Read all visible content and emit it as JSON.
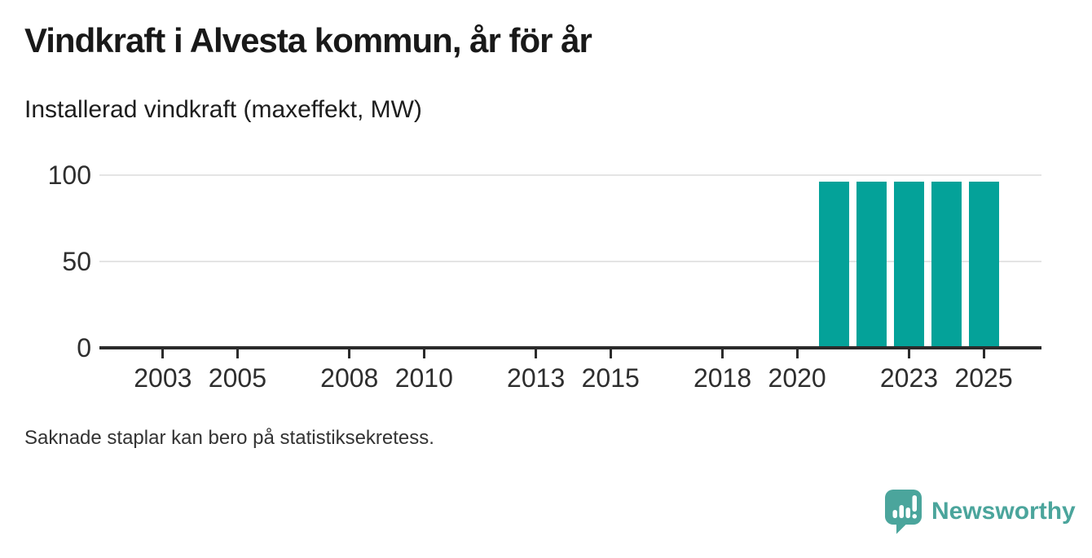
{
  "header": {
    "title": "Vindkraft i Alvesta kommun, år för år",
    "subtitle": "Installerad vindkraft (maxeffekt, MW)"
  },
  "chart_data": {
    "type": "bar",
    "title": "Vindkraft i Alvesta kommun, år för år",
    "ylabel": "Installerad vindkraft (maxeffekt, MW)",
    "xlabel": "",
    "x": [
      2021,
      2022,
      2023,
      2024,
      2025
    ],
    "values": [
      96,
      96,
      96,
      96,
      96
    ],
    "xlim": [
      2001.3,
      2026.55
    ],
    "ylim": [
      0,
      100
    ],
    "yticks": [
      0,
      50,
      100
    ],
    "xticks": [
      2003,
      2005,
      2008,
      2010,
      2013,
      2015,
      2018,
      2020,
      2023,
      2025
    ],
    "grid": "horizontal-y",
    "legend": "none",
    "bar_color": "#04a299"
  },
  "footer": {
    "note": "Saknade staplar kan bero på statistiksekretess."
  },
  "branding": {
    "name": "Newsworthy",
    "logo_color": "#4ba59c",
    "logo_icon": "speech-bubble-bar-chart-icon"
  }
}
